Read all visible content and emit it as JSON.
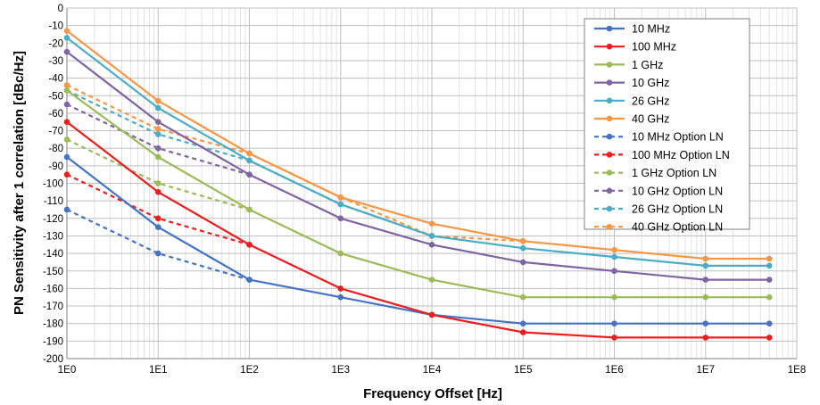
{
  "chart_data": {
    "type": "line",
    "title": "",
    "xlabel": "Frequency Offset [Hz]",
    "ylabel": "PN Sensitivity after 1 correlation [dBc/Hz]",
    "xscale": "log",
    "xlim": [
      1,
      100000000
    ],
    "ylim": [
      -200,
      0
    ],
    "ystep": 10,
    "grid": true,
    "legend_position": "top-right",
    "xtick_labels": [
      "1E0",
      "1E1",
      "1E2",
      "1E3",
      "1E4",
      "1E5",
      "1E6",
      "1E7",
      "1E8"
    ],
    "ytick_labels": [
      "0",
      "-10",
      "-20",
      "-30",
      "-40",
      "-50",
      "-60",
      "-70",
      "-80",
      "-90",
      "-100",
      "-110",
      "-120",
      "-130",
      "-140",
      "-150",
      "-160",
      "-170",
      "-180",
      "-190",
      "-200"
    ],
    "series": [
      {
        "name": "10 MHz",
        "color": "#4472c4",
        "dashed": false,
        "x": [
          1,
          10,
          100,
          1000,
          10000,
          100000,
          1000000,
          10000000,
          50000000
        ],
        "values": [
          -85,
          -125,
          -155,
          -165,
          -175,
          -180,
          -180,
          -180,
          -180
        ]
      },
      {
        "name": "100 MHz",
        "color": "#ee1c1c",
        "dashed": false,
        "x": [
          1,
          10,
          100,
          1000,
          10000,
          100000,
          1000000,
          10000000,
          50000000
        ],
        "values": [
          -65,
          -105,
          -135,
          -160,
          -175,
          -185,
          -188,
          -188,
          -188
        ]
      },
      {
        "name": "1 GHz",
        "color": "#9bbb59",
        "dashed": false,
        "x": [
          1,
          10,
          100,
          1000,
          10000,
          100000,
          1000000,
          10000000,
          50000000
        ],
        "values": [
          -47,
          -85,
          -115,
          -140,
          -155,
          -165,
          -165,
          -165,
          -165
        ]
      },
      {
        "name": "10 GHz",
        "color": "#8064a2",
        "dashed": false,
        "x": [
          1,
          10,
          100,
          1000,
          10000,
          100000,
          1000000,
          10000000,
          50000000
        ],
        "values": [
          -25,
          -65,
          -95,
          -120,
          -135,
          -145,
          -150,
          -155,
          -155
        ]
      },
      {
        "name": "26 GHz",
        "color": "#4bacc6",
        "dashed": false,
        "x": [
          1,
          10,
          100,
          1000,
          10000,
          100000,
          1000000,
          10000000,
          50000000
        ],
        "values": [
          -17,
          -57,
          -87,
          -112,
          -130,
          -137,
          -142,
          -147,
          -147
        ]
      },
      {
        "name": "40 GHz",
        "color": "#f79646",
        "dashed": false,
        "x": [
          1,
          10,
          100,
          1000,
          10000,
          100000,
          1000000,
          10000000,
          50000000
        ],
        "values": [
          -13,
          -53,
          -83,
          -108,
          -123,
          -133,
          -138,
          -143,
          -143
        ]
      },
      {
        "name": "10 MHz Option LN",
        "color": "#4472c4",
        "dashed": true,
        "x": [
          1,
          10,
          100
        ],
        "values": [
          -115,
          -140,
          -155
        ]
      },
      {
        "name": "100 MHz Option LN",
        "color": "#ee1c1c",
        "dashed": true,
        "x": [
          1,
          10,
          100
        ],
        "values": [
          -95,
          -120,
          -135
        ]
      },
      {
        "name": "1 GHz Option LN",
        "color": "#9bbb59",
        "dashed": true,
        "x": [
          1,
          10,
          100
        ],
        "values": [
          -75,
          -100,
          -115
        ]
      },
      {
        "name": "10 GHz Option LN",
        "color": "#8064a2",
        "dashed": true,
        "x": [
          1,
          10,
          100
        ],
        "values": [
          -55,
          -80,
          -95
        ]
      },
      {
        "name": "26 GHz Option LN",
        "color": "#4bacc6",
        "dashed": true,
        "x": [
          1,
          10,
          100,
          1000,
          10000
        ],
        "values": [
          -47,
          -72,
          -87,
          -112,
          -130
        ]
      },
      {
        "name": "40 GHz Option LN",
        "color": "#f79646",
        "dashed": true,
        "x": [
          1,
          10,
          100,
          1000,
          10000,
          100000
        ],
        "values": [
          -44,
          -69,
          -83,
          -108,
          -130,
          -133
        ]
      }
    ]
  }
}
